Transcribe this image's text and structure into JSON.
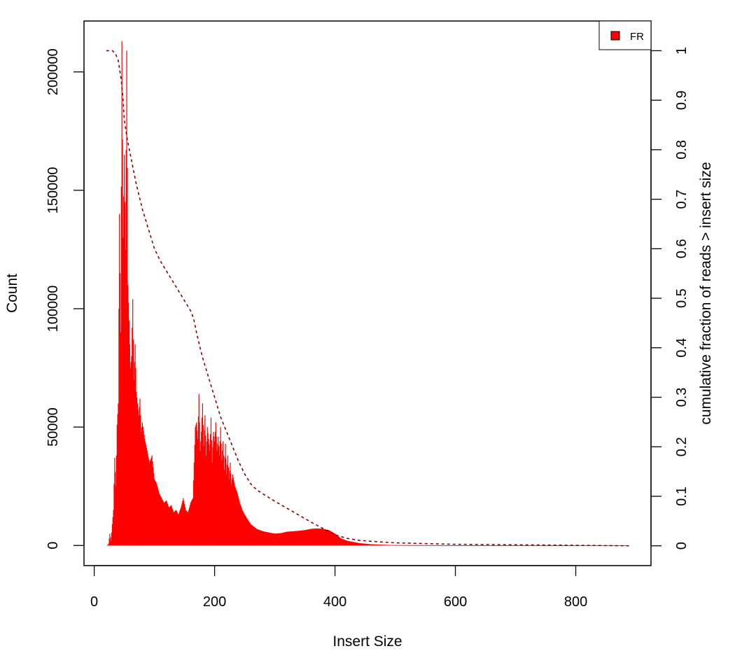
{
  "chart_data": {
    "type": "bar",
    "title": "",
    "xlabel": "Insert Size",
    "ylabel": "Count",
    "y2label": "cumulative fraction of reads > insert size",
    "xlim": [
      -17,
      925
    ],
    "ylim": [
      -8500,
      221500
    ],
    "y2lim": [
      -0.04,
      1.06
    ],
    "xticks": [
      0,
      200,
      400,
      600,
      800
    ],
    "yticks": [
      0,
      50000,
      100000,
      150000,
      200000
    ],
    "y2ticks": [
      0,
      0.1,
      0.2,
      0.3,
      0.4,
      0.5,
      0.6,
      0.7,
      0.8,
      0.9,
      1
    ],
    "y2tick_labels": [
      "0",
      "0.1",
      "0.2",
      "0.3",
      "0.4",
      "0.5",
      "0.6",
      "0.7",
      "0.8",
      "0.9",
      "1"
    ],
    "legend": {
      "position": "top-right",
      "entries": [
        {
          "label": "FR",
          "color": "#ff0000"
        }
      ]
    },
    "colors": {
      "histogram": "#ff0000",
      "cumulative": "#8b0000"
    },
    "series": [
      {
        "name": "FR",
        "kind": "histogram",
        "x": [
          22,
          24,
          26,
          28,
          30,
          32,
          34,
          36,
          38,
          40,
          42,
          44,
          46,
          48,
          50,
          52,
          54,
          56,
          58,
          60,
          62,
          64,
          66,
          68,
          70,
          72,
          74,
          76,
          78,
          80,
          84,
          88,
          92,
          96,
          100,
          104,
          108,
          112,
          116,
          120,
          124,
          128,
          132,
          136,
          140,
          144,
          148,
          152,
          156,
          160,
          164,
          168,
          170,
          172,
          174,
          176,
          178,
          180,
          182,
          184,
          186,
          188,
          190,
          192,
          194,
          196,
          198,
          200,
          202,
          204,
          206,
          208,
          210,
          212,
          214,
          216,
          218,
          220,
          222,
          224,
          226,
          228,
          230,
          234,
          238,
          242,
          246,
          250,
          255,
          260,
          265,
          270,
          280,
          290,
          300,
          310,
          320,
          330,
          340,
          350,
          360,
          370,
          380,
          390,
          400,
          410,
          420,
          440,
          460,
          480,
          500,
          550,
          600,
          700,
          800,
          888
        ],
        "y": [
          0,
          800,
          5000,
          2000,
          9000,
          15000,
          37000,
          25000,
          51000,
          60000,
          140000,
          90000,
          213000,
          130000,
          165000,
          125000,
          209000,
          110000,
          95000,
          75000,
          80000,
          104000,
          70000,
          85000,
          65000,
          60000,
          55000,
          62000,
          48000,
          52000,
          45000,
          40000,
          35000,
          38000,
          28000,
          26000,
          22000,
          20000,
          18000,
          19000,
          16000,
          17000,
          14000,
          15000,
          13000,
          16000,
          20000,
          15000,
          14000,
          18000,
          20000,
          50000,
          52000,
          45000,
          64000,
          40000,
          48000,
          60000,
          42000,
          55000,
          38000,
          50000,
          45000,
          40000,
          54000,
          35000,
          48000,
          44000,
          52000,
          40000,
          46000,
          38000,
          50000,
          36000,
          44000,
          32000,
          43000,
          30000,
          38000,
          28000,
          35000,
          26000,
          30000,
          25000,
          22000,
          18000,
          15000,
          13000,
          11000,
          9000,
          8000,
          7000,
          6000,
          5500,
          5000,
          5200,
          5800,
          6000,
          6200,
          6500,
          7000,
          7200,
          7000,
          6500,
          5000,
          3000,
          2000,
          1000,
          500,
          300,
          150,
          100,
          60,
          30,
          15,
          5
        ]
      },
      {
        "name": "cumulative",
        "kind": "line",
        "x": [
          20,
          30,
          35,
          40,
          45,
          48,
          50,
          55,
          60,
          70,
          80,
          90,
          100,
          110,
          120,
          130,
          140,
          150,
          160,
          165,
          170,
          175,
          180,
          190,
          200,
          210,
          220,
          230,
          240,
          250,
          260,
          270,
          280,
          300,
          320,
          340,
          360,
          380,
          400,
          420,
          440,
          460,
          500,
          600,
          700,
          800,
          888
        ],
        "y": [
          1.0,
          1.0,
          0.995,
          0.98,
          0.94,
          0.9,
          0.86,
          0.82,
          0.79,
          0.73,
          0.68,
          0.64,
          0.6,
          0.575,
          0.555,
          0.535,
          0.515,
          0.495,
          0.475,
          0.46,
          0.43,
          0.405,
          0.38,
          0.34,
          0.3,
          0.26,
          0.23,
          0.2,
          0.17,
          0.145,
          0.125,
          0.113,
          0.105,
          0.09,
          0.076,
          0.062,
          0.048,
          0.035,
          0.022,
          0.015,
          0.011,
          0.009,
          0.006,
          0.003,
          0.002,
          0.001,
          0.0
        ]
      }
    ]
  }
}
